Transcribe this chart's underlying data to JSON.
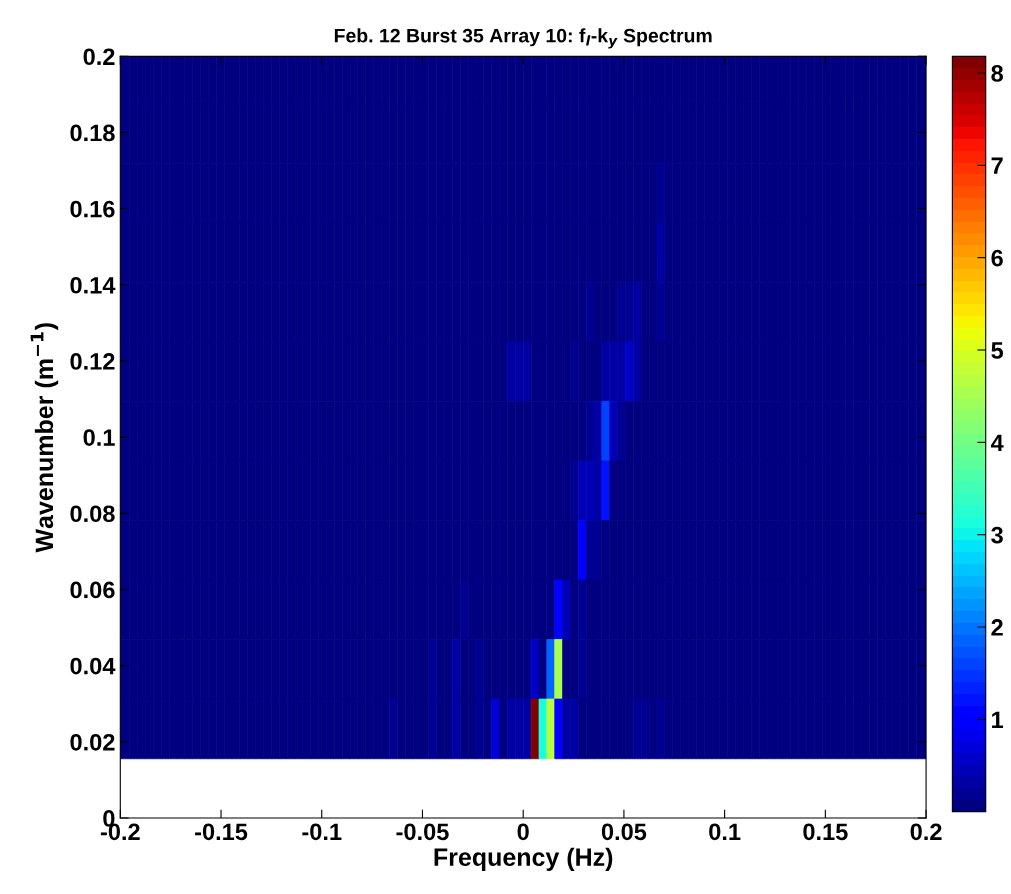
{
  "chart_data": {
    "type": "heatmap",
    "title": "Feb. 12 Burst 35 Array 10: f$_{l}$-k$_{y}$ Spectrum",
    "xlabel": "Frequency (Hz)",
    "ylabel": "Wavenumber (m$^{−1}$)",
    "x": [
      -0.1973,
      -0.1934,
      -0.1895,
      -0.1855,
      -0.1816,
      -0.1777,
      -0.1738,
      -0.1699,
      -0.166,
      -0.1621,
      -0.1582,
      -0.1543,
      -0.1504,
      -0.1465,
      -0.1426,
      -0.1387,
      -0.1348,
      -0.1309,
      -0.127,
      -0.123,
      -0.1191,
      -0.1152,
      -0.1113,
      -0.1074,
      -0.1035,
      -0.0996,
      -0.0957,
      -0.0918,
      -0.0879,
      -0.084,
      -0.0801,
      -0.0762,
      -0.0723,
      -0.0684,
      -0.0645,
      -0.0605,
      -0.0566,
      -0.0527,
      -0.0488,
      -0.0449,
      -0.041,
      -0.0371,
      -0.0332,
      -0.0293,
      -0.0254,
      -0.0215,
      -0.0176,
      -0.0137,
      -0.0098,
      -0.0059,
      -0.002,
      0.002,
      0.0059,
      0.0098,
      0.0137,
      0.0176,
      0.0215,
      0.0254,
      0.0293,
      0.0332,
      0.0371,
      0.041,
      0.0449,
      0.0488,
      0.0527,
      0.0566,
      0.0605,
      0.0645,
      0.0684,
      0.0723,
      0.0762,
      0.0801,
      0.084,
      0.0879,
      0.0918,
      0.0957,
      0.0996,
      0.1035,
      0.1074,
      0.1113,
      0.1152,
      0.1191,
      0.123,
      0.127,
      0.1309,
      0.1348,
      0.1387,
      0.1426,
      0.1465,
      0.1504,
      0.1543,
      0.1582,
      0.1621,
      0.166,
      0.1699,
      0.1738,
      0.1777,
      0.1816,
      0.1855,
      0.1895,
      0.1934,
      0.1973
    ],
    "y": [
      0.1953,
      0.1797,
      0.1641,
      0.1484,
      0.1328,
      0.1172,
      0.1016,
      0.0859,
      0.0703,
      0.0547,
      0.0391,
      0.0234
    ],
    "cells": [
      [
        0.1,
        0.1,
        0.1,
        0.1,
        0.1,
        0.1,
        0.1,
        0.1,
        0.1,
        0.1,
        0.1,
        0.1,
        0.1,
        0.1,
        0.1,
        0.1,
        0.1,
        0.1,
        0.1,
        0.1,
        0.1,
        0.1,
        0.1,
        0.1,
        0.1,
        0.1,
        0.1,
        0.1,
        0.1,
        0.1,
        0.1,
        0.1,
        0.1,
        0.1,
        0.1,
        0.1,
        0.1,
        0.1,
        0.1,
        0.1,
        0.1,
        0.1,
        0.1,
        0.1,
        0.1,
        0.1,
        0.1,
        0.1,
        0.1,
        0.1,
        0.1,
        0.1,
        0.1,
        0.1,
        0.1,
        0.1,
        0.1,
        0.1,
        0.1,
        0.1,
        0.1,
        0.1,
        0.1,
        0.1,
        0.1,
        0.1,
        0.1,
        0.1,
        0.1,
        0.1,
        0.1,
        0.1,
        0.1,
        0.1,
        0.1,
        0.1,
        0.1,
        0.1,
        0.1,
        0.1,
        0.1,
        0.1,
        0.1,
        0.1,
        0.1,
        0.1,
        0.1,
        0.1,
        0.1,
        0.1,
        0.1,
        0.1,
        0.1,
        0.1,
        0.1,
        0.1,
        0.1,
        0.1,
        0.1,
        0.1,
        0.1,
        0.1
      ],
      [
        0.1,
        0.1,
        0.1,
        0.1,
        0.1,
        0.1,
        0.1,
        0.1,
        0.1,
        0.1,
        0.1,
        0.1,
        0.1,
        0.1,
        0.1,
        0.1,
        0.1,
        0.1,
        0.1,
        0.1,
        0.1,
        0.1,
        0.1,
        0.1,
        0.1,
        0.1,
        0.1,
        0.1,
        0.1,
        0.1,
        0.1,
        0.1,
        0.1,
        0.1,
        0.1,
        0.1,
        0.1,
        0.1,
        0.1,
        0.1,
        0.1,
        0.1,
        0.1,
        0.1,
        0.1,
        0.1,
        0.1,
        0.1,
        0.1,
        0.1,
        0.1,
        0.1,
        0.1,
        0.1,
        0.1,
        0.1,
        0.1,
        0.1,
        0.1,
        0.1,
        0.1,
        0.1,
        0.1,
        0.1,
        0.1,
        0.1,
        0.1,
        0.1,
        0.1,
        0.1,
        0.1,
        0.1,
        0.1,
        0.1,
        0.1,
        0.1,
        0.1,
        0.1,
        0.1,
        0.1,
        0.1,
        0.1,
        0.1,
        0.1,
        0.1,
        0.1,
        0.1,
        0.1,
        0.1,
        0.1,
        0.1,
        0.1,
        0.1,
        0.1,
        0.1,
        0.1,
        0.1,
        0.1,
        0.1,
        0.1,
        0.1,
        0.1
      ],
      [
        0.1,
        0.1,
        0.1,
        0.1,
        0.1,
        0.1,
        0.1,
        0.1,
        0.1,
        0.1,
        0.1,
        0.1,
        0.1,
        0.1,
        0.1,
        0.1,
        0.1,
        0.1,
        0.1,
        0.1,
        0.1,
        0.1,
        0.1,
        0.1,
        0.1,
        0.1,
        0.1,
        0.1,
        0.1,
        0.1,
        0.1,
        0.1,
        0.1,
        0.1,
        0.1,
        0.1,
        0.1,
        0.1,
        0.1,
        0.1,
        0.1,
        0.1,
        0.1,
        0.1,
        0.1,
        0.1,
        0.1,
        0.1,
        0.1,
        0.1,
        0.1,
        0.1,
        0.1,
        0.1,
        0.1,
        0.1,
        0.1,
        0.1,
        0.1,
        0.1,
        0.1,
        0.1,
        0.1,
        0.1,
        0.1,
        0.1,
        0.1,
        0.1,
        0.25,
        0.1,
        0.1,
        0.1,
        0.1,
        0.1,
        0.1,
        0.1,
        0.1,
        0.1,
        0.1,
        0.1,
        0.1,
        0.1,
        0.1,
        0.1,
        0.1,
        0.1,
        0.1,
        0.1,
        0.1,
        0.1,
        0.1,
        0.1,
        0.1,
        0.1,
        0.1,
        0.1,
        0.1,
        0.1,
        0.1,
        0.1,
        0.1,
        0.1
      ],
      [
        0.1,
        0.1,
        0.1,
        0.1,
        0.1,
        0.1,
        0.1,
        0.1,
        0.1,
        0.1,
        0.1,
        0.1,
        0.1,
        0.1,
        0.1,
        0.1,
        0.1,
        0.1,
        0.1,
        0.1,
        0.1,
        0.1,
        0.1,
        0.1,
        0.1,
        0.1,
        0.1,
        0.1,
        0.1,
        0.1,
        0.1,
        0.1,
        0.1,
        0.1,
        0.1,
        0.1,
        0.1,
        0.1,
        0.1,
        0.1,
        0.1,
        0.1,
        0.1,
        0.1,
        0.1,
        0.1,
        0.1,
        0.1,
        0.1,
        0.1,
        0.1,
        0.1,
        0.1,
        0.1,
        0.1,
        0.1,
        0.1,
        0.1,
        0.1,
        0.1,
        0.1,
        0.1,
        0.1,
        0.1,
        0.1,
        0.1,
        0.1,
        0.1,
        0.3,
        0.1,
        0.1,
        0.1,
        0.1,
        0.1,
        0.1,
        0.1,
        0.1,
        0.1,
        0.1,
        0.1,
        0.1,
        0.1,
        0.1,
        0.1,
        0.1,
        0.1,
        0.1,
        0.1,
        0.1,
        0.1,
        0.1,
        0.1,
        0.1,
        0.1,
        0.1,
        0.1,
        0.1,
        0.1,
        0.1,
        0.1,
        0.1,
        0.1
      ],
      [
        0.1,
        0.1,
        0.1,
        0.1,
        0.1,
        0.1,
        0.1,
        0.1,
        0.1,
        0.1,
        0.1,
        0.1,
        0.1,
        0.1,
        0.1,
        0.1,
        0.1,
        0.1,
        0.1,
        0.1,
        0.1,
        0.1,
        0.1,
        0.1,
        0.1,
        0.1,
        0.1,
        0.1,
        0.1,
        0.1,
        0.1,
        0.1,
        0.1,
        0.1,
        0.1,
        0.1,
        0.1,
        0.1,
        0.1,
        0.1,
        0.1,
        0.1,
        0.1,
        0.1,
        0.1,
        0.1,
        0.1,
        0.1,
        0.1,
        0.1,
        0.1,
        0.1,
        0.1,
        0.1,
        0.1,
        0.1,
        0.1,
        0.1,
        0.1,
        0.25,
        0.1,
        0.1,
        0.1,
        0.25,
        0.25,
        0.35,
        0.1,
        0.1,
        0.25,
        0.1,
        0.1,
        0.1,
        0.1,
        0.1,
        0.1,
        0.1,
        0.1,
        0.1,
        0.1,
        0.1,
        0.1,
        0.1,
        0.1,
        0.1,
        0.1,
        0.1,
        0.1,
        0.1,
        0.1,
        0.1,
        0.1,
        0.1,
        0.1,
        0.1,
        0.1,
        0.1,
        0.1,
        0.1,
        0.1,
        0.1,
        0.1,
        0.1
      ],
      [
        0.1,
        0.1,
        0.1,
        0.1,
        0.1,
        0.1,
        0.1,
        0.1,
        0.1,
        0.1,
        0.1,
        0.1,
        0.1,
        0.1,
        0.1,
        0.1,
        0.1,
        0.1,
        0.1,
        0.1,
        0.1,
        0.1,
        0.1,
        0.1,
        0.1,
        0.1,
        0.1,
        0.1,
        0.1,
        0.1,
        0.1,
        0.1,
        0.1,
        0.1,
        0.1,
        0.1,
        0.1,
        0.1,
        0.1,
        0.1,
        0.1,
        0.1,
        0.1,
        0.1,
        0.1,
        0.1,
        0.1,
        0.1,
        0.1,
        0.3,
        0.3,
        0.3,
        0.1,
        0.1,
        0.1,
        0.1,
        0.1,
        0.25,
        0.1,
        0.1,
        0.1,
        0.3,
        0.3,
        0.3,
        0.6,
        0.3,
        0.1,
        0.1,
        0.1,
        0.1,
        0.1,
        0.1,
        0.1,
        0.1,
        0.1,
        0.1,
        0.1,
        0.1,
        0.1,
        0.1,
        0.1,
        0.1,
        0.1,
        0.1,
        0.1,
        0.1,
        0.1,
        0.1,
        0.1,
        0.1,
        0.1,
        0.1,
        0.1,
        0.1,
        0.1,
        0.1,
        0.1,
        0.1,
        0.1,
        0.1,
        0.1,
        0.1
      ],
      [
        0.1,
        0.1,
        0.1,
        0.1,
        0.1,
        0.1,
        0.1,
        0.1,
        0.1,
        0.1,
        0.1,
        0.1,
        0.1,
        0.1,
        0.1,
        0.1,
        0.1,
        0.1,
        0.1,
        0.1,
        0.1,
        0.1,
        0.1,
        0.1,
        0.1,
        0.1,
        0.1,
        0.1,
        0.1,
        0.1,
        0.1,
        0.1,
        0.1,
        0.1,
        0.1,
        0.1,
        0.1,
        0.1,
        0.1,
        0.1,
        0.1,
        0.1,
        0.1,
        0.1,
        0.1,
        0.1,
        0.1,
        0.1,
        0.1,
        0.1,
        0.1,
        0.1,
        0.1,
        0.1,
        0.1,
        0.1,
        0.1,
        0.1,
        0.1,
        0.25,
        0.3,
        1.6,
        0.5,
        0.25,
        0.1,
        0.1,
        0.1,
        0.1,
        0.1,
        0.1,
        0.1,
        0.1,
        0.1,
        0.1,
        0.1,
        0.1,
        0.1,
        0.1,
        0.1,
        0.1,
        0.1,
        0.1,
        0.1,
        0.1,
        0.1,
        0.1,
        0.1,
        0.1,
        0.1,
        0.1,
        0.1,
        0.1,
        0.1,
        0.1,
        0.1,
        0.1,
        0.1,
        0.1,
        0.1,
        0.1,
        0.1,
        0.1
      ],
      [
        0.1,
        0.1,
        0.1,
        0.1,
        0.1,
        0.1,
        0.1,
        0.1,
        0.1,
        0.1,
        0.1,
        0.1,
        0.1,
        0.1,
        0.1,
        0.1,
        0.1,
        0.1,
        0.1,
        0.1,
        0.1,
        0.1,
        0.1,
        0.1,
        0.1,
        0.1,
        0.1,
        0.1,
        0.1,
        0.1,
        0.1,
        0.1,
        0.1,
        0.1,
        0.1,
        0.1,
        0.1,
        0.1,
        0.1,
        0.1,
        0.1,
        0.1,
        0.1,
        0.1,
        0.1,
        0.1,
        0.1,
        0.1,
        0.1,
        0.1,
        0.1,
        0.1,
        0.1,
        0.1,
        0.1,
        0.1,
        0.1,
        0.25,
        0.5,
        0.5,
        0.3,
        1.25,
        0.1,
        0.1,
        0.1,
        0.1,
        0.1,
        0.1,
        0.1,
        0.1,
        0.1,
        0.1,
        0.1,
        0.1,
        0.1,
        0.1,
        0.1,
        0.1,
        0.1,
        0.1,
        0.1,
        0.1,
        0.1,
        0.1,
        0.1,
        0.1,
        0.1,
        0.1,
        0.1,
        0.1,
        0.1,
        0.1,
        0.1,
        0.1,
        0.1,
        0.1,
        0.1,
        0.1,
        0.1,
        0.1,
        0.1,
        0.1
      ],
      [
        0.1,
        0.1,
        0.1,
        0.1,
        0.1,
        0.1,
        0.1,
        0.1,
        0.1,
        0.1,
        0.1,
        0.1,
        0.1,
        0.1,
        0.1,
        0.1,
        0.1,
        0.1,
        0.1,
        0.1,
        0.1,
        0.1,
        0.1,
        0.1,
        0.1,
        0.1,
        0.1,
        0.1,
        0.1,
        0.1,
        0.1,
        0.1,
        0.1,
        0.1,
        0.1,
        0.1,
        0.1,
        0.1,
        0.1,
        0.1,
        0.1,
        0.1,
        0.1,
        0.1,
        0.1,
        0.1,
        0.1,
        0.1,
        0.1,
        0.1,
        0.1,
        0.1,
        0.1,
        0.1,
        0.1,
        0.1,
        0.1,
        0.1,
        0.9,
        0.25,
        0.25,
        0.1,
        0.1,
        0.1,
        0.1,
        0.1,
        0.1,
        0.1,
        0.1,
        0.1,
        0.1,
        0.1,
        0.1,
        0.1,
        0.1,
        0.1,
        0.1,
        0.1,
        0.1,
        0.1,
        0.1,
        0.1,
        0.1,
        0.1,
        0.1,
        0.1,
        0.1,
        0.1,
        0.1,
        0.1,
        0.1,
        0.1,
        0.1,
        0.1,
        0.1,
        0.1,
        0.1,
        0.1,
        0.1,
        0.1,
        0.1,
        0.1
      ],
      [
        0.1,
        0.1,
        0.1,
        0.1,
        0.1,
        0.1,
        0.1,
        0.1,
        0.1,
        0.1,
        0.1,
        0.1,
        0.1,
        0.1,
        0.1,
        0.1,
        0.1,
        0.1,
        0.1,
        0.1,
        0.1,
        0.1,
        0.1,
        0.1,
        0.1,
        0.1,
        0.1,
        0.1,
        0.1,
        0.1,
        0.1,
        0.1,
        0.1,
        0.1,
        0.1,
        0.1,
        0.1,
        0.1,
        0.1,
        0.1,
        0.1,
        0.1,
        0.1,
        0.25,
        0.1,
        0.1,
        0.1,
        0.1,
        0.1,
        0.1,
        0.1,
        0.1,
        0.1,
        0.1,
        0.1,
        1.1,
        0.5,
        0.1,
        0.25,
        0.1,
        0.1,
        0.1,
        0.1,
        0.1,
        0.1,
        0.1,
        0.1,
        0.1,
        0.1,
        0.1,
        0.1,
        0.1,
        0.1,
        0.1,
        0.1,
        0.1,
        0.1,
        0.1,
        0.1,
        0.1,
        0.1,
        0.1,
        0.1,
        0.1,
        0.1,
        0.1,
        0.1,
        0.1,
        0.1,
        0.1,
        0.1,
        0.1,
        0.1,
        0.1,
        0.1,
        0.1,
        0.1,
        0.1,
        0.1,
        0.1,
        0.1,
        0.1
      ],
      [
        0.1,
        0.1,
        0.1,
        0.1,
        0.1,
        0.1,
        0.1,
        0.1,
        0.1,
        0.1,
        0.1,
        0.1,
        0.1,
        0.1,
        0.1,
        0.1,
        0.1,
        0.1,
        0.1,
        0.1,
        0.1,
        0.1,
        0.1,
        0.1,
        0.1,
        0.1,
        0.1,
        0.1,
        0.1,
        0.1,
        0.1,
        0.1,
        0.1,
        0.1,
        0.1,
        0.1,
        0.1,
        0.1,
        0.1,
        0.25,
        0.1,
        0.1,
        0.3,
        0.1,
        0.1,
        0.25,
        0.1,
        0.1,
        0.1,
        0.1,
        0.1,
        0.1,
        0.6,
        0.1,
        1.8,
        4.5,
        0.1,
        0.1,
        0.25,
        0.1,
        0.1,
        0.1,
        0.1,
        0.1,
        0.1,
        0.1,
        0.1,
        0.1,
        0.1,
        0.1,
        0.1,
        0.1,
        0.1,
        0.1,
        0.1,
        0.1,
        0.1,
        0.1,
        0.1,
        0.1,
        0.1,
        0.1,
        0.1,
        0.1,
        0.1,
        0.1,
        0.1,
        0.1,
        0.1,
        0.1,
        0.1,
        0.1,
        0.1,
        0.1,
        0.1,
        0.1,
        0.1,
        0.1,
        0.1,
        0.1,
        0.1,
        0.1
      ],
      [
        0.1,
        0.1,
        0.1,
        0.1,
        0.1,
        0.1,
        0.1,
        0.1,
        0.1,
        0.1,
        0.1,
        0.1,
        0.1,
        0.1,
        0.1,
        0.1,
        0.1,
        0.1,
        0.1,
        0.1,
        0.1,
        0.1,
        0.1,
        0.1,
        0.1,
        0.1,
        0.1,
        0.1,
        0.1,
        0.1,
        0.1,
        0.1,
        0.1,
        0.1,
        0.25,
        0.1,
        0.1,
        0.1,
        0.1,
        0.25,
        0.1,
        0.1,
        0.3,
        0.1,
        0.1,
        0.25,
        0.1,
        0.7,
        0.1,
        0.3,
        0.3,
        0.3,
        8.18,
        3.1,
        4.7,
        1.0,
        0.3,
        0.3,
        0.1,
        0.1,
        0.1,
        0.1,
        0.1,
        0.1,
        0.1,
        0.25,
        0.25,
        0.1,
        0.25,
        0.1,
        0.1,
        0.1,
        0.1,
        0.1,
        0.1,
        0.1,
        0.1,
        0.1,
        0.1,
        0.1,
        0.1,
        0.1,
        0.1,
        0.1,
        0.1,
        0.1,
        0.1,
        0.1,
        0.1,
        0.1,
        0.1,
        0.1,
        0.1,
        0.1,
        0.1,
        0.1,
        0.1,
        0.1,
        0.1,
        0.1,
        0.1,
        0.1
      ]
    ],
    "xlim": [
      -0.2,
      0.2
    ],
    "xticks": [
      -0.2,
      -0.15,
      -0.1,
      -0.05,
      0,
      0.05,
      0.1,
      0.15,
      0.2
    ],
    "ylim": [
      0,
      0.2
    ],
    "yticks": [
      0,
      0.02,
      0.04,
      0.06,
      0.08,
      0.1,
      0.12,
      0.14,
      0.16,
      0.18,
      0.2
    ],
    "clim": [
      0,
      8.18
    ],
    "cticks": [
      1,
      2,
      3,
      4,
      5,
      6,
      7,
      8
    ],
    "grid": false
  }
}
